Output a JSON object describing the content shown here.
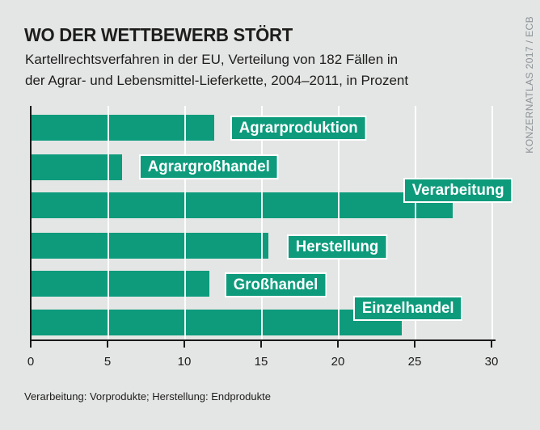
{
  "header": {
    "title": "WO DER WETTBEWERB STÖRT",
    "subtitle_line1": "Kartellrechtsverfahren in der EU, Verteilung von 182 Fällen in",
    "subtitle_line2": "der Agrar- und Lebensmittel-Lieferkette, 2004–2011, in Prozent"
  },
  "credit": "KONZERNATLAS 2017 / ECB",
  "footnote": "Verarbeitung: Vorprodukte; Herstellung: Endprodukte",
  "colors": {
    "bar": "#0d9b7c",
    "background": "#e4e6e5",
    "text": "#1d1d1b",
    "credit_text": "#8c9196",
    "gridline": "#ffffff",
    "label_text": "#ffffff",
    "label_border": "#ffffff",
    "axis": "#1a1a1a"
  },
  "chart_data": {
    "type": "bar",
    "orientation": "horizontal",
    "title": "WO DER WETTBEWERB STÖRT",
    "subtitle": "Kartellrechtsverfahren in der EU, Verteilung von 182 Fällen in der Agrar- und Lebensmittel-Lieferkette, 2004–2011, in Prozent",
    "categories": [
      "Agrarproduktion",
      "Agrargroßhandel",
      "Verarbeitung",
      "Herstellung",
      "Großhandel",
      "Einzelhandel"
    ],
    "values": [
      11.9,
      5.9,
      27.4,
      15.4,
      11.6,
      24.1
    ],
    "unit": "Prozent",
    "xlim": [
      0,
      30
    ],
    "xticks": [
      0,
      5,
      10,
      15,
      20,
      25,
      30
    ],
    "grid": true,
    "legend": false,
    "annotation": "Verarbeitung: Vorprodukte; Herstellung: Endprodukte"
  }
}
